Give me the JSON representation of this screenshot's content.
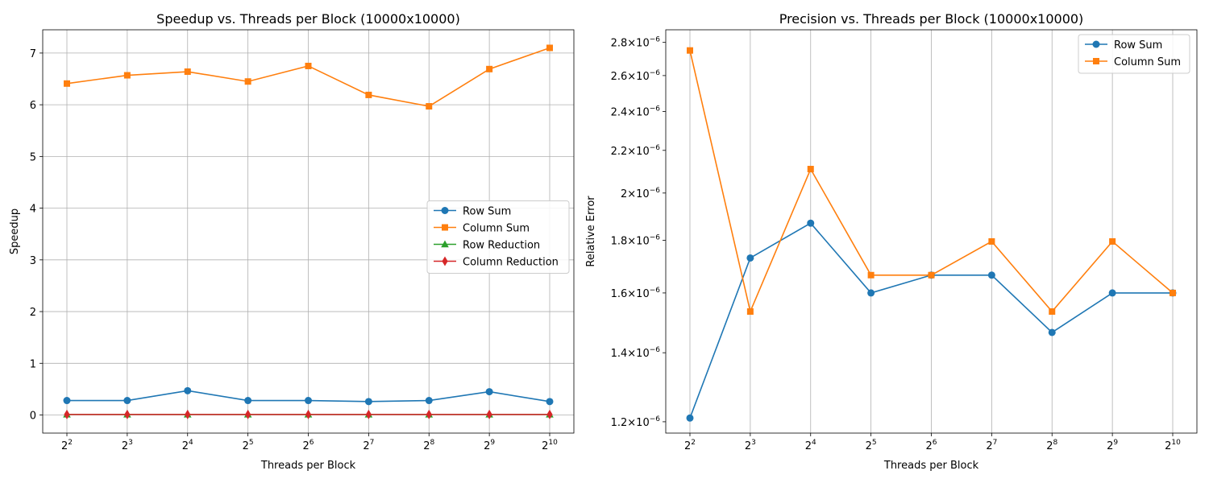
{
  "chart_data": [
    {
      "type": "line",
      "title": "Speedup vs. Threads per Block (10000x10000)",
      "xlabel": "Threads per Block",
      "ylabel": "Speedup",
      "x_ticks": [
        {
          "base": "2",
          "exp": "2"
        },
        {
          "base": "2",
          "exp": "3"
        },
        {
          "base": "2",
          "exp": "4"
        },
        {
          "base": "2",
          "exp": "5"
        },
        {
          "base": "2",
          "exp": "6"
        },
        {
          "base": "2",
          "exp": "7"
        },
        {
          "base": "2",
          "exp": "8"
        },
        {
          "base": "2",
          "exp": "9"
        },
        {
          "base": "2",
          "exp": "10"
        }
      ],
      "x": [
        4,
        8,
        16,
        32,
        64,
        128,
        256,
        512,
        1024
      ],
      "x_scale": "log2",
      "ylim": [
        -0.35,
        7.45
      ],
      "y_ticks": [
        {
          "v": 0,
          "label": "0"
        },
        {
          "v": 1,
          "label": "1"
        },
        {
          "v": 2,
          "label": "2"
        },
        {
          "v": 3,
          "label": "3"
        },
        {
          "v": 4,
          "label": "4"
        },
        {
          "v": 5,
          "label": "5"
        },
        {
          "v": 6,
          "label": "6"
        },
        {
          "v": 7,
          "label": "7"
        }
      ],
      "grid": true,
      "legend_position": "center-right",
      "series": [
        {
          "name": "Row Sum",
          "color": "#1f77b4",
          "marker": "circle",
          "values": [
            0.28,
            0.28,
            0.47,
            0.28,
            0.28,
            0.26,
            0.28,
            0.45,
            0.26
          ]
        },
        {
          "name": "Column Sum",
          "color": "#ff7f0e",
          "marker": "square",
          "values": [
            6.41,
            6.57,
            6.64,
            6.45,
            6.75,
            6.19,
            5.97,
            6.69,
            7.1
          ]
        },
        {
          "name": "Row Reduction",
          "color": "#2ca02c",
          "marker": "triangle",
          "values": [
            0.01,
            0.01,
            0.01,
            0.01,
            0.01,
            0.01,
            0.01,
            0.01,
            0.01
          ]
        },
        {
          "name": "Column Reduction",
          "color": "#d62728",
          "marker": "diamond",
          "values": [
            0.01,
            0.01,
            0.01,
            0.01,
            0.01,
            0.01,
            0.01,
            0.01,
            0.01
          ]
        }
      ]
    },
    {
      "type": "line",
      "title": "Precision vs. Threads per Block (10000x10000)",
      "xlabel": "Threads per Block",
      "ylabel": "Relative Error",
      "x_ticks": [
        {
          "base": "2",
          "exp": "2"
        },
        {
          "base": "2",
          "exp": "3"
        },
        {
          "base": "2",
          "exp": "4"
        },
        {
          "base": "2",
          "exp": "5"
        },
        {
          "base": "2",
          "exp": "6"
        },
        {
          "base": "2",
          "exp": "7"
        },
        {
          "base": "2",
          "exp": "8"
        },
        {
          "base": "2",
          "exp": "9"
        },
        {
          "base": "2",
          "exp": "10"
        }
      ],
      "x": [
        4,
        8,
        16,
        32,
        64,
        128,
        256,
        512,
        1024
      ],
      "x_scale": "log2",
      "y_scale": "log",
      "ylim": [
        1.17e-06,
        2.88e-06
      ],
      "y_ticks": [
        {
          "v": 1.2e-06,
          "label": "1.2",
          "exp": "−6"
        },
        {
          "v": 1.4e-06,
          "label": "1.4",
          "exp": "−6"
        },
        {
          "v": 1.6e-06,
          "label": "1.6",
          "exp": "−6"
        },
        {
          "v": 1.8e-06,
          "label": "1.8",
          "exp": "−6"
        },
        {
          "v": 2e-06,
          "label": "2",
          "exp": "−6"
        },
        {
          "v": 2.2e-06,
          "label": "2.2",
          "exp": "−6"
        },
        {
          "v": 2.4e-06,
          "label": "2.4",
          "exp": "−6"
        },
        {
          "v": 2.6e-06,
          "label": "2.6",
          "exp": "−6"
        },
        {
          "v": 2.8e-06,
          "label": "2.8",
          "exp": "−6"
        }
      ],
      "grid": "x-only",
      "legend_position": "upper-right",
      "series": [
        {
          "name": "Row Sum",
          "color": "#1f77b4",
          "marker": "circle",
          "values": [
            1.21e-06,
            1.73e-06,
            1.87e-06,
            1.6e-06,
            1.665e-06,
            1.665e-06,
            1.465e-06,
            1.6e-06,
            1.6e-06
          ]
        },
        {
          "name": "Column Sum",
          "color": "#ff7f0e",
          "marker": "square",
          "values": [
            2.75e-06,
            1.535e-06,
            2.11e-06,
            1.665e-06,
            1.665e-06,
            1.795e-06,
            1.535e-06,
            1.795e-06,
            1.6e-06
          ]
        }
      ]
    }
  ]
}
